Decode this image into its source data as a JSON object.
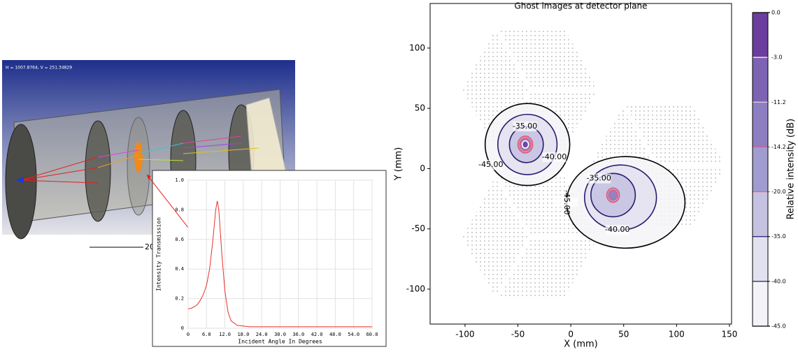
{
  "render": {
    "coords": "H = 1007.8764, V = 251.34829",
    "scale": "20"
  },
  "chart_data": [
    {
      "type": "line",
      "x_label": "Incident Angle In Degrees",
      "y_label": "Intensity Transmission",
      "x": [
        0,
        1,
        2,
        3,
        4,
        5,
        6,
        7,
        8,
        9,
        9.5,
        10,
        11,
        12,
        13,
        14,
        16,
        20,
        30,
        60
      ],
      "series": [
        {
          "color": "#e8302a",
          "values": [
            0.13,
            0.135,
            0.145,
            0.16,
            0.19,
            0.23,
            0.29,
            0.4,
            0.58,
            0.8,
            0.86,
            0.8,
            0.5,
            0.25,
            0.11,
            0.05,
            0.02,
            0.01,
            0.01,
            0.01
          ]
        }
      ],
      "xlim": [
        0,
        60
      ],
      "ylim": [
        0,
        1
      ],
      "xticks": [
        0,
        {
          "value": 6,
          "label": "6.0"
        },
        {
          "value": 12,
          "label": "12.0"
        },
        {
          "value": 18,
          "label": "18.0"
        },
        {
          "value": 24,
          "label": "24.0"
        },
        {
          "value": 30,
          "label": "30.0"
        },
        {
          "value": 36,
          "label": "36.0"
        },
        {
          "value": 42,
          "label": "42.0"
        },
        {
          "value": 48,
          "label": "48.0"
        },
        {
          "value": 54,
          "label": "54.0"
        },
        {
          "value": 60,
          "label": "60.0"
        }
      ],
      "yticks": [
        0,
        0.2,
        0.4,
        0.6,
        0.8,
        {
          "value": 1,
          "label": "1.0"
        }
      ],
      "grid": true
    },
    {
      "type": "contour",
      "title": "Ghost images at detector plane",
      "x_label": "X (mm)",
      "y_label": "Y (mm)",
      "xlim": [
        -133,
        152
      ],
      "ylim": [
        -129,
        137
      ],
      "xticks": [
        -100,
        -50,
        0,
        50,
        100,
        150
      ],
      "yticks": [
        -100,
        -50,
        0,
        50,
        100
      ],
      "colorbar": {
        "label": "Relative intensity (dB)",
        "ticks": [
          {
            "value": 0,
            "label": "0.0"
          },
          {
            "value": -3,
            "label": "-3.0"
          },
          {
            "value": -11.2,
            "label": "-11.2"
          },
          {
            "value": -14.2,
            "label": "-14.2"
          },
          {
            "value": -20,
            "label": "-20.0"
          },
          {
            "value": -35,
            "label": "-35.0"
          },
          {
            "value": -40,
            "label": "-40.0"
          },
          {
            "value": -45,
            "label": "-45.0"
          }
        ],
        "colors": [
          "#6a3d9e",
          "#7d63b4",
          "#8d7ec2",
          "#a09ccf",
          "#c4c2e0",
          "#e2e1ef",
          "#f4f4f8"
        ],
        "line_colors": [
          "#ffffff",
          "#f0d0e0",
          "#e85a7a",
          "#e85a7a",
          "#2a1a6e",
          "#2a1a6e",
          "#000000"
        ]
      },
      "ghosts": [
        {
          "contours": [
            {
              "level": -45,
              "cx": -41,
              "cy": 20,
              "rx": 40,
              "ry": 34,
              "label": "-45.00"
            },
            {
              "level": -40,
              "cx": -41,
              "cy": 20,
              "rx": 28,
              "ry": 25,
              "label": "-40.00"
            },
            {
              "level": -35,
              "cx": -42,
              "cy": 20,
              "rx": 16,
              "ry": 15,
              "label": "-35.00"
            },
            {
              "level": -20,
              "cx": -43,
              "cy": 20,
              "rx": 7,
              "ry": 7
            },
            {
              "level": -14.2,
              "cx": -43,
              "cy": 20,
              "rx": 5,
              "ry": 5
            },
            {
              "level": -3,
              "cx": -43,
              "cy": 20,
              "rx": 3,
              "ry": 3
            }
          ]
        },
        {
          "contours": [
            {
              "level": -45,
              "cx": 52,
              "cy": -28,
              "rx": 56,
              "ry": 38,
              "label": "-45.00"
            },
            {
              "level": -40,
              "cx": 47,
              "cy": -24,
              "rx": 34,
              "ry": 27,
              "label": "-40.00"
            },
            {
              "level": -35,
              "cx": 40,
              "cy": -22,
              "rx": 21,
              "ry": 18,
              "label": "-35.00"
            },
            {
              "level": -20,
              "cx": 40,
              "cy": -22,
              "rx": 6,
              "ry": 6
            },
            {
              "level": -14.2,
              "cx": 40,
              "cy": -22,
              "rx": 4,
              "ry": 4
            }
          ]
        }
      ]
    }
  ]
}
